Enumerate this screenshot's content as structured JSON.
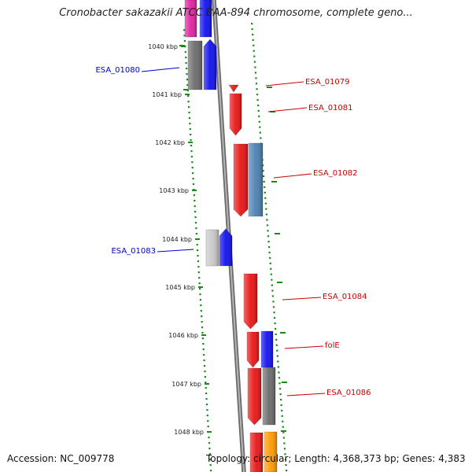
{
  "title": "Cronobacter sakazakii ATCC BAA-894 chromosome, complete geno...",
  "accession": "Accession: NC_009778",
  "topology": "Topology: circular; Length: 4,368,373 bp; Genes: 4,383",
  "ticks": [
    "1040 kbp",
    "1041 kbp",
    "1042 kbp",
    "1043 kbp",
    "1044 kbp",
    "1045 kbp",
    "1046 kbp",
    "1047 kbp",
    "1048 kbp"
  ],
  "genes": [
    {
      "label": "ESA_01080",
      "strand": "plus",
      "color": "#0000cc"
    },
    {
      "label": "ESA_01079",
      "strand": "minus",
      "color": "#cc0000"
    },
    {
      "label": "ESA_01081",
      "strand": "minus",
      "color": "#cc0000"
    },
    {
      "label": "ESA_01082",
      "strand": "minus",
      "color": "#cc0000"
    },
    {
      "label": "ESA_01083",
      "strand": "plus",
      "color": "#0000cc"
    },
    {
      "label": "ESA_01084",
      "strand": "minus",
      "color": "#cc0000"
    },
    {
      "label": "folE",
      "strand": "minus",
      "color": "#cc0000"
    },
    {
      "label": "ESA_01086",
      "strand": "minus",
      "color": "#cc0000"
    }
  ],
  "colors": {
    "backbone": "#8a8a8a",
    "forward": "#1010ee",
    "reverse": "#e81414",
    "dots": "#1a8a1a",
    "gray_dark": "#6a6a6a",
    "gray_light": "#c8c8c8",
    "steelblue": "#4a7fb0",
    "magenta": "#e020a0",
    "orange": "#ff9900",
    "label_blue": "#0000cc",
    "label_red": "#cc0000"
  }
}
